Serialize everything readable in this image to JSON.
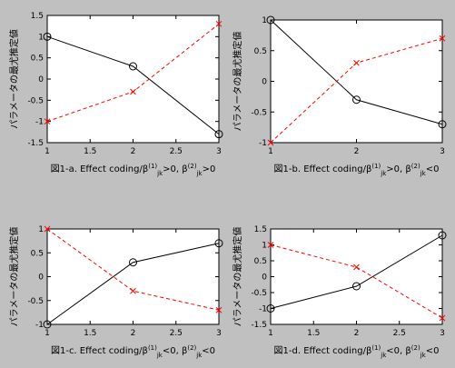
{
  "figure": {
    "background": "#c0c0c0",
    "axes_background": "#ffffff"
  },
  "chart_data": [
    {
      "type": "line",
      "caption": {
        "main": "図1-a. Effect coding/β",
        "sup1": "(1)",
        "sub1": "jk",
        "mid": ">0, β",
        "sup2": "(2)",
        "sub2": "jk",
        "end": ">0"
      },
      "ylabel": "パラメータの最尤推定値",
      "x": [
        1,
        2,
        3
      ],
      "xlim": [
        1,
        3
      ],
      "ylim": [
        -1.5,
        1.5
      ],
      "xticks": [
        "1",
        "1.5",
        "2",
        "2.5",
        "3"
      ],
      "yticks": [
        "-1.5",
        "-1",
        "-0.5",
        "0",
        "0.5",
        "1",
        "1.5"
      ],
      "series": [
        {
          "values": [
            1.0,
            0.3,
            -1.3
          ],
          "color": "#000000",
          "style": "solid",
          "marker": "o"
        },
        {
          "values": [
            -1.0,
            -0.3,
            1.3
          ],
          "color": "#ff0000",
          "style": "dashed",
          "marker": "x"
        }
      ]
    },
    {
      "type": "line",
      "caption": {
        "main": "図1-b. Effect coding/β",
        "sup1": "(1)",
        "sub1": "jk",
        "mid": ">0, β",
        "sup2": "(2)",
        "sub2": "jk",
        "end": "<0"
      },
      "ylabel": "パラメータの最尤推定値",
      "x": [
        1,
        2,
        3
      ],
      "xlim": [
        1,
        3
      ],
      "ylim": [
        -1,
        1
      ],
      "xticks": [
        "1",
        "2",
        "3"
      ],
      "yticks": [
        "-1",
        "-0.5",
        "0",
        "0.5",
        "1"
      ],
      "series": [
        {
          "values": [
            1.0,
            -0.3,
            -0.7
          ],
          "color": "#000000",
          "style": "solid",
          "marker": "o"
        },
        {
          "values": [
            -1.0,
            0.3,
            0.7
          ],
          "color": "#ff0000",
          "style": "dashed",
          "marker": "x"
        }
      ]
    },
    {
      "type": "line",
      "caption": {
        "main": "図1-c. Effect coding/β",
        "sup1": "(1)",
        "sub1": "jk",
        "mid": "<0, β",
        "sup2": "(2)",
        "sub2": "jk",
        "end": "<0"
      },
      "ylabel": "パラメータの最尤推定値",
      "x": [
        1,
        2,
        3
      ],
      "xlim": [
        1,
        3
      ],
      "ylim": [
        -1,
        1
      ],
      "xticks": [
        "1",
        "1.5",
        "2",
        "2.5",
        "3"
      ],
      "yticks": [
        "-1",
        "-0.5",
        "0",
        "0.5",
        "1"
      ],
      "series": [
        {
          "values": [
            -1.0,
            0.3,
            0.7
          ],
          "color": "#000000",
          "style": "solid",
          "marker": "o"
        },
        {
          "values": [
            1.0,
            -0.3,
            -0.7
          ],
          "color": "#ff0000",
          "style": "dashed",
          "marker": "x"
        }
      ]
    },
    {
      "type": "line",
      "caption": {
        "main": "図1-d. Effect coding/β",
        "sup1": "(1)",
        "sub1": "jk",
        "mid": "<0, β",
        "sup2": "(2)",
        "sub2": "jk",
        "end": "<0"
      },
      "ylabel": "パラメータの最尤推定値",
      "x": [
        1,
        2,
        3
      ],
      "xlim": [
        1,
        3
      ],
      "ylim": [
        -1.5,
        1.5
      ],
      "xticks": [
        "1",
        "1.5",
        "2",
        "2.5",
        "3"
      ],
      "yticks": [
        "-1.5",
        "-1",
        "-0.5",
        "0",
        "0.5",
        "1",
        "1.5"
      ],
      "series": [
        {
          "values": [
            -1.0,
            -0.3,
            1.3
          ],
          "color": "#000000",
          "style": "solid",
          "marker": "o"
        },
        {
          "values": [
            1.0,
            0.3,
            -1.3
          ],
          "color": "#ff0000",
          "style": "dashed",
          "marker": "x"
        }
      ]
    }
  ]
}
